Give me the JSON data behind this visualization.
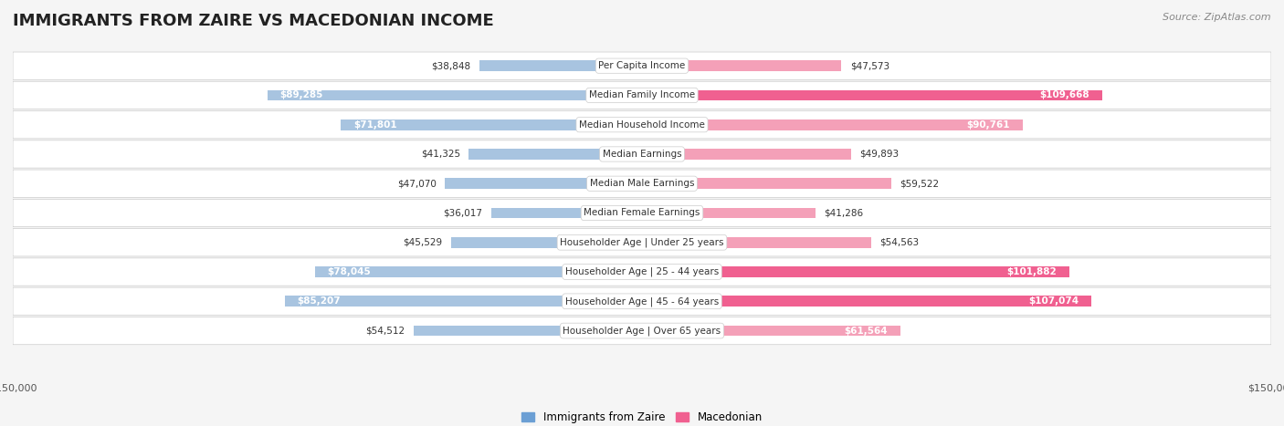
{
  "title": "IMMIGRANTS FROM ZAIRE VS MACEDONIAN INCOME",
  "source": "Source: ZipAtlas.com",
  "categories": [
    "Per Capita Income",
    "Median Family Income",
    "Median Household Income",
    "Median Earnings",
    "Median Male Earnings",
    "Median Female Earnings",
    "Householder Age | Under 25 years",
    "Householder Age | 25 - 44 years",
    "Householder Age | 45 - 64 years",
    "Householder Age | Over 65 years"
  ],
  "zaire_values": [
    38848,
    89285,
    71801,
    41325,
    47070,
    36017,
    45529,
    78045,
    85207,
    54512
  ],
  "macedonian_values": [
    47573,
    109668,
    90761,
    49893,
    59522,
    41286,
    54563,
    101882,
    107074,
    61564
  ],
  "zaire_labels": [
    "$38,848",
    "$89,285",
    "$71,801",
    "$41,325",
    "$47,070",
    "$36,017",
    "$45,529",
    "$78,045",
    "$85,207",
    "$54,512"
  ],
  "macedonian_labels": [
    "$47,573",
    "$109,668",
    "$90,761",
    "$49,893",
    "$59,522",
    "$41,286",
    "$54,563",
    "$101,882",
    "$107,074",
    "$61,564"
  ],
  "max_val": 150000,
  "zaire_color_light": "#a8c4e0",
  "zaire_color_dark": "#6b9fd4",
  "macedonian_color_light": "#f4a0b8",
  "macedonian_color_dark": "#f06090",
  "background_color": "#f5f5f5",
  "row_bg_color": "#efefef",
  "label_box_color": "#ffffff",
  "legend_zaire": "Immigrants from Zaire",
  "legend_macedonian": "Macedonian",
  "threshold_dark": 100000
}
